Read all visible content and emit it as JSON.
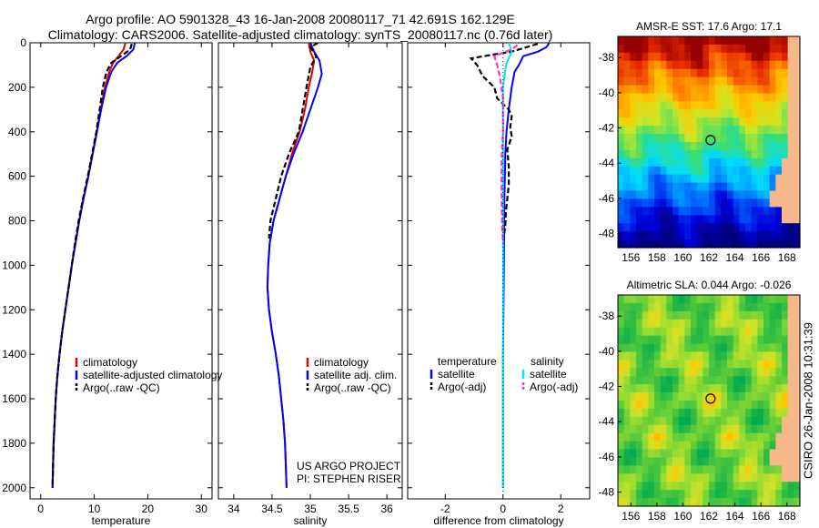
{
  "header": {
    "line1": "Argo profile: AO 5901328_43 16-Jan-2008 20080117_71 42.691S 162.129E",
    "line2": "Climatology: CARS2006. Satellite-adjusted climatology: synTS_20080117.nc (0.76d later)"
  },
  "side_stamp": "CSIRO 26-Jan-2008 10:31:39",
  "colors": {
    "climatology": "#e00000",
    "satellite": "#0000ff",
    "argo": "#000000",
    "satellite_diff": "#00e5ff",
    "argo_adj_diff": "#ff33cc",
    "land": "#f5b88a"
  },
  "chart_data": [
    {
      "id": "temperature",
      "type": "line",
      "xlabel": "temperature",
      "ylabel": "",
      "xlim": [
        -2,
        32
      ],
      "ylim": [
        2050,
        0
      ],
      "xticks": [
        "0",
        "10",
        "20",
        "30"
      ],
      "yticks": [
        "0",
        "200",
        "400",
        "600",
        "800",
        "1000",
        "1200",
        "1400",
        "1600",
        "1800",
        "2000"
      ],
      "legend": [
        "climatology",
        "satellite-adjusted climatology",
        "Argo(..raw -QC)"
      ],
      "series": [
        {
          "name": "climatology",
          "color": "#e00000",
          "style": "solid",
          "points": [
            [
              15.8,
              0
            ],
            [
              15.5,
              30
            ],
            [
              14.5,
              60
            ],
            [
              13.5,
              90
            ],
            [
              12.8,
              130
            ],
            [
              12.0,
              200
            ],
            [
              11.2,
              300
            ],
            [
              10.5,
              400
            ],
            [
              9.7,
              500
            ],
            [
              8.9,
              600
            ],
            [
              8.0,
              700
            ],
            [
              7.2,
              800
            ],
            [
              6.5,
              900
            ],
            [
              5.8,
              1000
            ],
            [
              5.2,
              1100
            ],
            [
              4.6,
              1200
            ],
            [
              4.0,
              1300
            ],
            [
              3.5,
              1400
            ],
            [
              3.1,
              1500
            ],
            [
              2.8,
              1600
            ],
            [
              2.6,
              1700
            ],
            [
              2.4,
              1800
            ],
            [
              2.3,
              1900
            ],
            [
              2.2,
              2000
            ]
          ]
        },
        {
          "name": "satellite-adjusted climatology",
          "color": "#0000ff",
          "style": "solid",
          "points": [
            [
              17.6,
              0
            ],
            [
              17.3,
              30
            ],
            [
              16.0,
              60
            ],
            [
              14.3,
              90
            ],
            [
              13.2,
              130
            ],
            [
              12.2,
              200
            ],
            [
              11.3,
              300
            ],
            [
              10.5,
              400
            ],
            [
              9.7,
              500
            ],
            [
              8.9,
              600
            ],
            [
              8.0,
              700
            ],
            [
              7.2,
              800
            ],
            [
              6.5,
              900
            ],
            [
              5.8,
              1000
            ],
            [
              5.2,
              1100
            ],
            [
              4.6,
              1200
            ],
            [
              4.0,
              1300
            ],
            [
              3.5,
              1400
            ],
            [
              3.1,
              1500
            ],
            [
              2.8,
              1600
            ],
            [
              2.6,
              1700
            ],
            [
              2.4,
              1800
            ],
            [
              2.3,
              1900
            ],
            [
              2.2,
              2000
            ]
          ]
        },
        {
          "name": "Argo(..raw -QC)",
          "color": "#000000",
          "style": "dashed",
          "points": [
            [
              17.0,
              5
            ],
            [
              16.7,
              30
            ],
            [
              15.0,
              60
            ],
            [
              13.2,
              90
            ],
            [
              12.3,
              130
            ],
            [
              11.6,
              200
            ],
            [
              11.0,
              300
            ],
            [
              10.4,
              400
            ],
            [
              9.6,
              500
            ],
            [
              8.8,
              600
            ],
            [
              7.9,
              700
            ],
            [
              7.1,
              800
            ],
            [
              6.4,
              900
            ],
            [
              5.8,
              1000
            ],
            [
              5.2,
              1100
            ],
            [
              4.6,
              1200
            ],
            [
              4.0,
              1300
            ],
            [
              3.5,
              1400
            ],
            [
              3.1,
              1500
            ],
            [
              2.8,
              1600
            ],
            [
              2.6,
              1700
            ],
            [
              2.4,
              1800
            ],
            [
              2.3,
              1900
            ],
            [
              2.2,
              2000
            ]
          ]
        }
      ]
    },
    {
      "id": "salinity",
      "type": "line",
      "xlabel": "salinity",
      "ylabel": "",
      "xlim": [
        33.8,
        36.2
      ],
      "ylim": [
        2050,
        0
      ],
      "xticks": [
        "34",
        "34.5",
        "35",
        "35.5",
        "36"
      ],
      "yticks": [],
      "legend": [
        "climatology",
        "satellite adj. clim.",
        "Argo(..raw -QC)"
      ],
      "series": [
        {
          "name": "climatology",
          "color": "#e00000",
          "style": "solid",
          "points": [
            [
              34.98,
              0
            ],
            [
              35.0,
              40
            ],
            [
              35.05,
              80
            ],
            [
              35.02,
              140
            ],
            [
              34.98,
              200
            ],
            [
              34.93,
              300
            ],
            [
              34.86,
              400
            ],
            [
              34.76,
              500
            ],
            [
              34.68,
              600
            ],
            [
              34.6,
              700
            ],
            [
              34.52,
              800
            ],
            [
              34.47,
              900
            ],
            [
              34.45,
              1000
            ],
            [
              34.44,
              1100
            ],
            [
              34.46,
              1200
            ],
            [
              34.5,
              1300
            ],
            [
              34.55,
              1400
            ],
            [
              34.59,
              1500
            ],
            [
              34.62,
              1600
            ],
            [
              34.65,
              1700
            ],
            [
              34.67,
              1800
            ],
            [
              34.68,
              1900
            ],
            [
              34.69,
              2000
            ]
          ]
        },
        {
          "name": "satellite adj. clim.",
          "color": "#0000ff",
          "style": "solid",
          "points": [
            [
              35.0,
              0
            ],
            [
              35.05,
              40
            ],
            [
              35.12,
              80
            ],
            [
              35.15,
              140
            ],
            [
              35.1,
              200
            ],
            [
              35.0,
              300
            ],
            [
              34.9,
              400
            ],
            [
              34.78,
              500
            ],
            [
              34.68,
              600
            ],
            [
              34.6,
              700
            ],
            [
              34.52,
              800
            ],
            [
              34.47,
              900
            ],
            [
              34.45,
              1000
            ],
            [
              34.44,
              1100
            ],
            [
              34.46,
              1200
            ],
            [
              34.5,
              1300
            ],
            [
              34.55,
              1400
            ],
            [
              34.59,
              1500
            ],
            [
              34.62,
              1600
            ],
            [
              34.65,
              1700
            ],
            [
              34.67,
              1800
            ],
            [
              34.68,
              1900
            ],
            [
              34.69,
              2000
            ]
          ]
        },
        {
          "name": "Argo(..raw -QC)",
          "color": "#000000",
          "style": "dashed",
          "points": [
            [
              35.1,
              0
            ],
            [
              35.0,
              20
            ],
            [
              35.08,
              60
            ],
            [
              35.0,
              110
            ],
            [
              34.95,
              200
            ],
            [
              34.9,
              300
            ],
            [
              34.85,
              400
            ],
            [
              34.72,
              500
            ],
            [
              34.62,
              600
            ],
            [
              34.55,
              700
            ],
            [
              34.48,
              800
            ],
            [
              34.46,
              880
            ]
          ]
        }
      ]
    },
    {
      "id": "difference",
      "type": "line",
      "xlabel": "difference from climatology",
      "ylabel": "",
      "xlim": [
        -3.3,
        3.0
      ],
      "ylim": [
        2050,
        0
      ],
      "xticks": [
        "-2",
        "0",
        "2"
      ],
      "yticks": [],
      "legend": [
        "temperature",
        "satellite",
        "Argo(-adj)",
        "salinity",
        "satellite",
        "Argo(-adj)"
      ],
      "series": [
        {
          "name": "satellite",
          "color": "#0000ff",
          "style": "solid",
          "points": [
            [
              1.6,
              0
            ],
            [
              1.5,
              20
            ],
            [
              1.2,
              40
            ],
            [
              0.7,
              60
            ],
            [
              0.55,
              100
            ],
            [
              0.4,
              130
            ],
            [
              0.3,
              200
            ],
            [
              0.2,
              300
            ],
            [
              0.12,
              400
            ],
            [
              0.08,
              500
            ],
            [
              0.05,
              700
            ],
            [
              0.03,
              1000
            ],
            [
              0.0,
              1400
            ],
            [
              0.0,
              2000
            ]
          ]
        },
        {
          "name": "Argo(-adj)",
          "color": "#000000",
          "style": "dashed",
          "points": [
            [
              1.2,
              5
            ],
            [
              0.8,
              20
            ],
            [
              0.3,
              40
            ],
            [
              -0.2,
              50
            ],
            [
              -1.1,
              70
            ],
            [
              -0.9,
              100
            ],
            [
              -0.7,
              150
            ],
            [
              -0.3,
              200
            ],
            [
              -0.2,
              250
            ],
            [
              0.2,
              300
            ],
            [
              0.3,
              330
            ],
            [
              0.25,
              380
            ],
            [
              0.3,
              420
            ],
            [
              0.15,
              480
            ],
            [
              0.2,
              560
            ],
            [
              0.2,
              640
            ],
            [
              0.15,
              700
            ],
            [
              0.1,
              760
            ],
            [
              0.08,
              820
            ],
            [
              0.0,
              900
            ]
          ]
        },
        {
          "name": "satellite",
          "color": "#00e5ff",
          "style": "solid",
          "points": [
            [
              0.2,
              0
            ],
            [
              0.3,
              40
            ],
            [
              0.1,
              100
            ],
            [
              0.0,
              200
            ],
            [
              0.0,
              400
            ],
            [
              0.0,
              800
            ],
            [
              0.0,
              1200
            ],
            [
              0.0,
              1600
            ],
            [
              0.0,
              2000
            ]
          ]
        },
        {
          "name": "Argo(-adj)",
          "color": "#ff33cc",
          "style": "dashed",
          "points": [
            [
              0.5,
              10
            ],
            [
              0.3,
              30
            ],
            [
              -0.3,
              60
            ],
            [
              -0.2,
              100
            ],
            [
              -0.1,
              160
            ],
            [
              0.0,
              250
            ],
            [
              0.0,
              400
            ],
            [
              -0.05,
              520
            ],
            [
              -0.05,
              700
            ],
            [
              -0.03,
              820
            ],
            [
              0.0,
              900
            ]
          ]
        }
      ]
    },
    {
      "id": "sst_map",
      "type": "heatmap",
      "title": "AMSR-E SST: 17.6 Argo: 17.1",
      "xlim": [
        155,
        169
      ],
      "ylim": [
        -48.8,
        -36.8
      ],
      "xticks": [
        "156",
        "158",
        "160",
        "162",
        "164",
        "166",
        "168"
      ],
      "yticks": [
        "-38",
        "-40",
        "-42",
        "-44",
        "-46",
        "-48"
      ],
      "marker": {
        "lon": 162.13,
        "lat": -42.69
      }
    },
    {
      "id": "sla_map",
      "type": "heatmap",
      "title": "Altimetric SLA: 0.044 Argo: -0.026",
      "xlim": [
        155,
        169
      ],
      "ylim": [
        -48.8,
        -36.8
      ],
      "xticks": [
        "156",
        "158",
        "160",
        "162",
        "164",
        "166",
        "168"
      ],
      "yticks": [
        "-38",
        "-40",
        "-42",
        "-44",
        "-46",
        "-48"
      ],
      "marker": {
        "lon": 162.13,
        "lat": -42.69
      }
    }
  ],
  "annotations": {
    "project_line1": "US ARGO PROJECT",
    "project_line2": "PI: STEPHEN RISER"
  }
}
